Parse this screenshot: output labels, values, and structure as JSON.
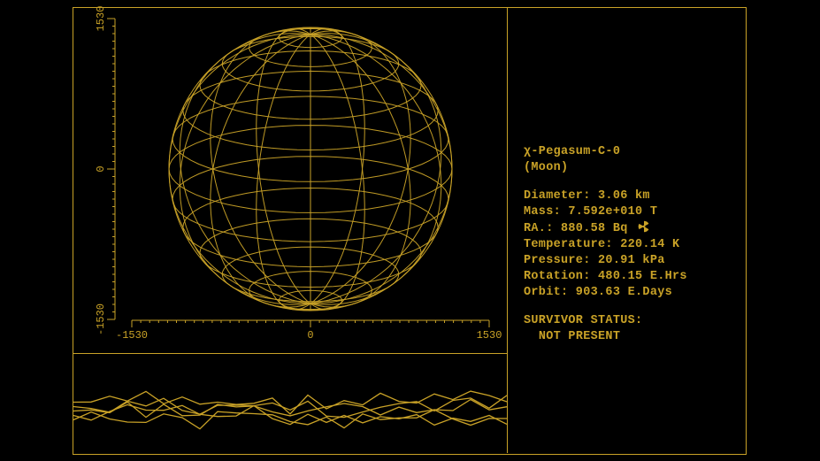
{
  "colors": {
    "fg": "#c9a227",
    "bg": "#000000"
  },
  "plot": {
    "type": "wireframe-sphere",
    "x_ticks": [
      -1530,
      0,
      1530
    ],
    "y_ticks": [
      -1530,
      0,
      1530
    ],
    "radius": 1530,
    "lat_lines": 14,
    "lon_lines": 16,
    "tilt_deg": 18,
    "line_color": "#c9a227",
    "line_width": 1,
    "background_color": "#000000",
    "tick_font_size": 12
  },
  "terrain": {
    "type": "line",
    "line_count": 5,
    "line_color": "#c9a227",
    "line_width": 1.3,
    "baseline_y": 68,
    "amplitude": 22,
    "seed": 7
  },
  "info": {
    "name": "χ-Pegasum-C-0",
    "classification": "(Moon)",
    "stats": [
      {
        "label": "Diameter",
        "value": "3.06 km"
      },
      {
        "label": "Mass",
        "value": "7.592e+010 T"
      },
      {
        "label": "RA.",
        "value": "880.58 Bq",
        "icon": "radiation"
      },
      {
        "label": "Temperature",
        "value": "220.14 K"
      },
      {
        "label": "Pressure",
        "value": "20.91 kPa"
      },
      {
        "label": "Rotation",
        "value": "480.15 E.Hrs"
      },
      {
        "label": "Orbit",
        "value": "903.63 E.Days"
      }
    ],
    "survivor": {
      "label": "SURVIVOR STATUS:",
      "value": "NOT PRESENT"
    }
  },
  "typography": {
    "font": "Courier New",
    "size": 13.5,
    "weight": "bold",
    "color": "#c9a227"
  }
}
